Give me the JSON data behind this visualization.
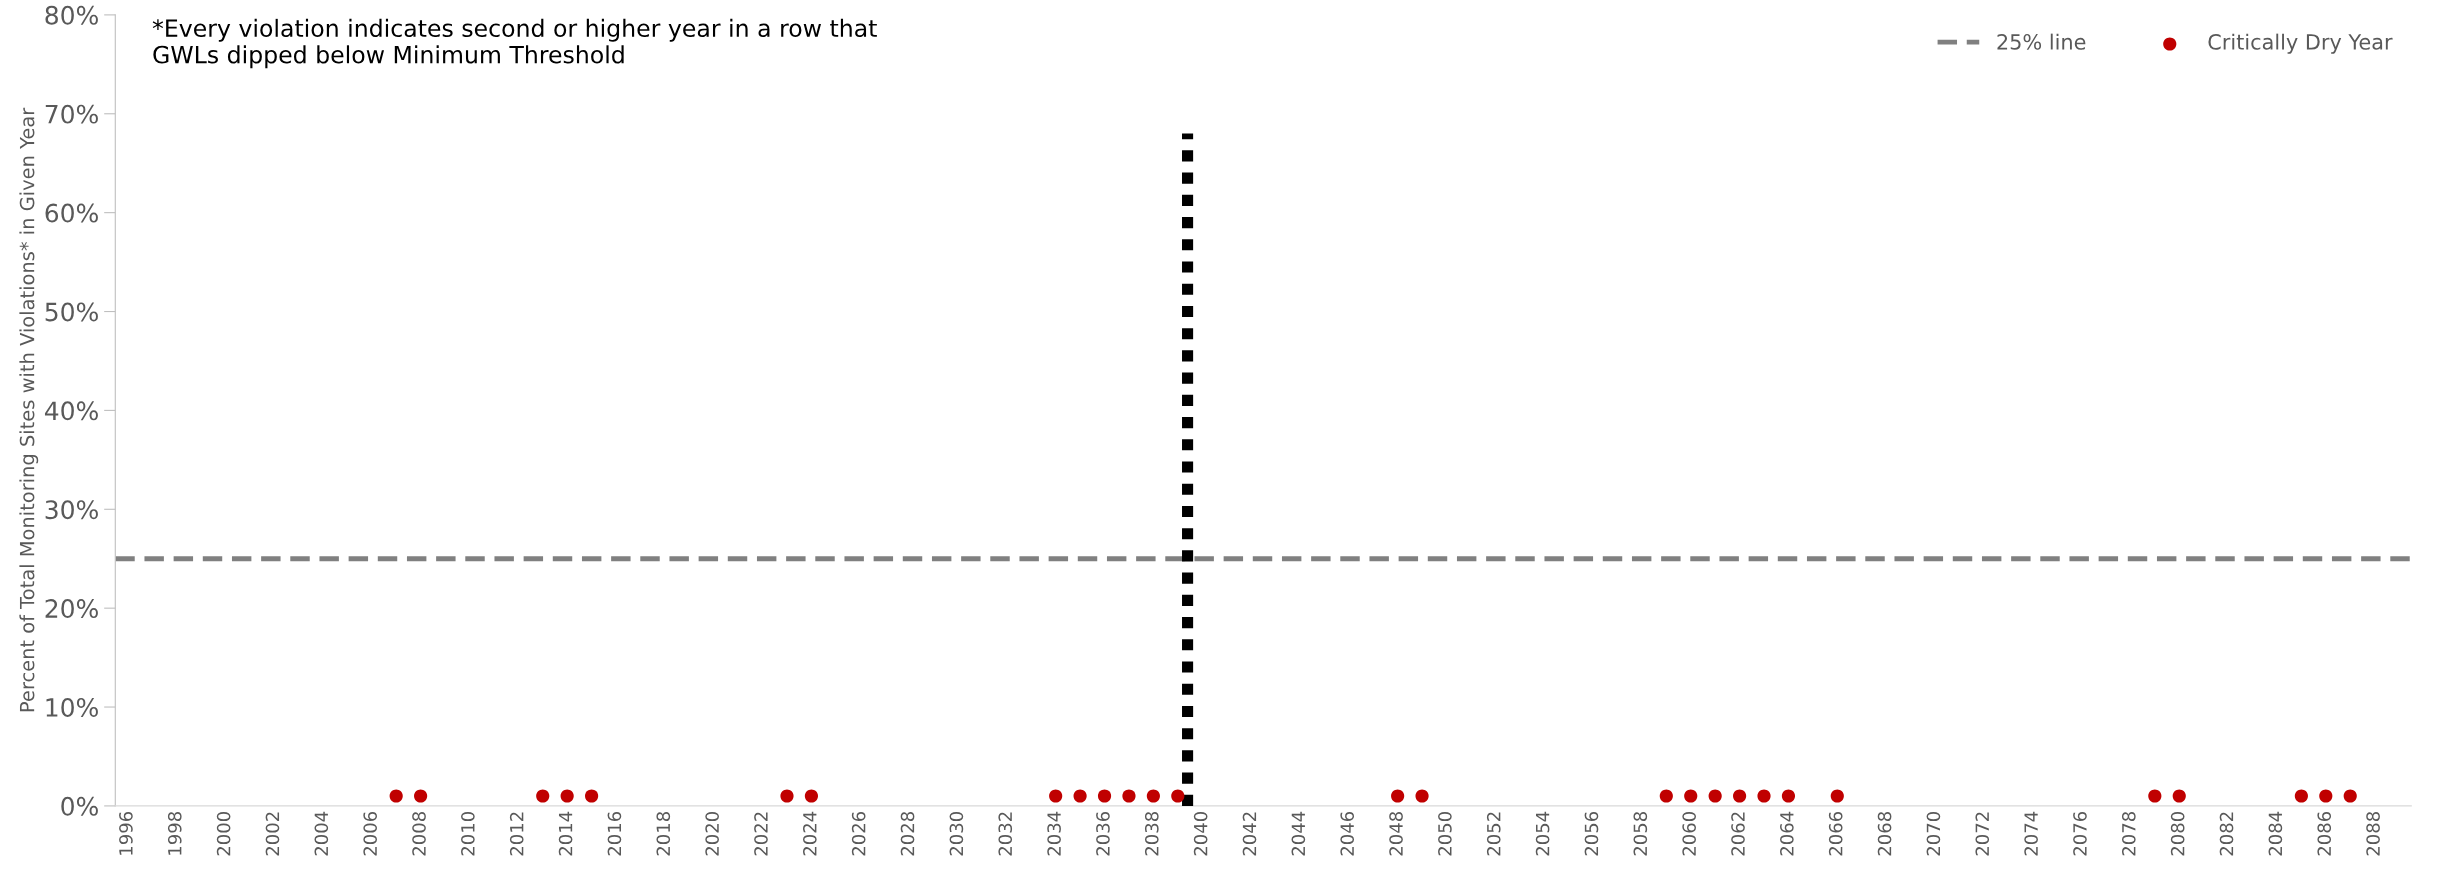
{
  "chart_data": {
    "type": "scatter",
    "ylabel": "Percent of Total Monitoring Sites with Violations* in Given Year",
    "annotations": [
      "*Every violation indicates second or higher year in a row that\nGWLs dipped below Minimum Threshold"
    ],
    "series": [
      {
        "name": "Critically Dry Year",
        "color": "#c00000",
        "marker": "circle",
        "x": [
          2007,
          2008,
          2013,
          2014,
          2015,
          2023,
          2024,
          2034,
          2035,
          2036,
          2037,
          2038,
          2039,
          2048,
          2049,
          2059,
          2060,
          2061,
          2062,
          2063,
          2064,
          2066,
          2079,
          2080,
          2085,
          2086,
          2087
        ],
        "values": [
          1,
          1,
          1,
          1,
          1,
          1,
          1,
          1,
          1,
          1,
          1,
          1,
          1,
          1,
          1,
          1,
          1,
          1,
          1,
          1,
          1,
          1,
          1,
          1,
          1,
          1,
          1
        ]
      },
      {
        "type": "line",
        "color": "#000000",
        "line_style": "dotted",
        "x": [
          2039.4,
          2039.4
        ],
        "values": [
          0,
          68
        ]
      }
    ],
    "ref_lines": [
      {
        "axis": "y",
        "value": 25,
        "label": "25% line",
        "color": "#808080",
        "line_style": "dashed"
      }
    ],
    "xlim": [
      1995.5,
      2089.5
    ],
    "xticks": [
      1996,
      1998,
      2000,
      2002,
      2004,
      2006,
      2008,
      2010,
      2012,
      2014,
      2016,
      2018,
      2020,
      2022,
      2024,
      2026,
      2028,
      2030,
      2032,
      2034,
      2036,
      2038,
      2040,
      2042,
      2044,
      2046,
      2048,
      2050,
      2052,
      2054,
      2056,
      2058,
      2060,
      2062,
      2064,
      2066,
      2068,
      2070,
      2072,
      2074,
      2076,
      2078,
      2080,
      2082,
      2084,
      2086,
      2088
    ],
    "ylim": [
      0,
      80
    ],
    "yticks": [
      {
        "value": 0,
        "label": "0%"
      },
      {
        "value": 10,
        "label": "10%"
      },
      {
        "value": 20,
        "label": "20%"
      },
      {
        "value": 30,
        "label": "30%"
      },
      {
        "value": 40,
        "label": "40%"
      },
      {
        "value": 50,
        "label": "50%"
      },
      {
        "value": 60,
        "label": "60%"
      },
      {
        "value": 70,
        "label": "70%"
      },
      {
        "value": 80,
        "label": "80%"
      }
    ],
    "grid": false,
    "legend": "top right"
  }
}
